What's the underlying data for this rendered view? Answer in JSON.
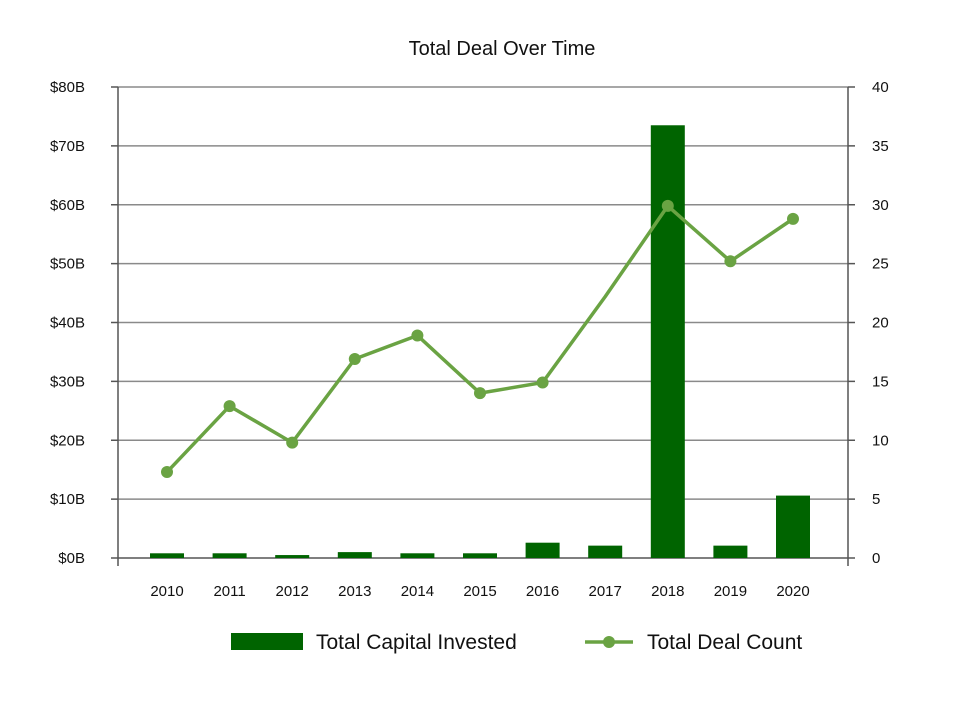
{
  "chart_data": {
    "type": "bar",
    "title": "Total Deal Over Time",
    "categories": [
      "2010",
      "2011",
      "2012",
      "2013",
      "2014",
      "2015",
      "2016",
      "2017",
      "2018",
      "2019",
      "2020"
    ],
    "series": [
      {
        "name": "Total Capital Invested",
        "type": "bar",
        "axis": "left",
        "color": "#006400",
        "values": [
          0.8,
          0.8,
          0.5,
          1.0,
          0.8,
          0.8,
          2.6,
          2.1,
          73.5,
          2.1,
          10.6
        ]
      },
      {
        "name": "Total Deal Count",
        "type": "line",
        "axis": "right",
        "color": "#6aa343",
        "values": [
          7.3,
          12.9,
          9.8,
          16.9,
          18.9,
          14.0,
          14.9,
          22.2,
          29.9,
          25.2,
          28.8
        ]
      }
    ],
    "y_left": {
      "ylim": [
        0,
        80
      ],
      "ticks": [
        0,
        10,
        20,
        30,
        40,
        50,
        60,
        70,
        80
      ],
      "tick_labels": [
        "$0B",
        "$10B",
        "$20B",
        "$30B",
        "$40B",
        "$50B",
        "$60B",
        "$70B",
        "$80B"
      ]
    },
    "y_right": {
      "ylim": [
        0,
        40
      ],
      "ticks": [
        0,
        5,
        10,
        15,
        20,
        25,
        30,
        35,
        40
      ],
      "tick_labels": [
        "0",
        "5",
        "10",
        "15",
        "20",
        "25",
        "30",
        "35",
        "40"
      ]
    },
    "grid": true,
    "legend_position": "bottom",
    "colors": {
      "bar": "#006400",
      "line": "#6aa343",
      "grid": "#8a8a8a",
      "axis": "#555555"
    }
  }
}
